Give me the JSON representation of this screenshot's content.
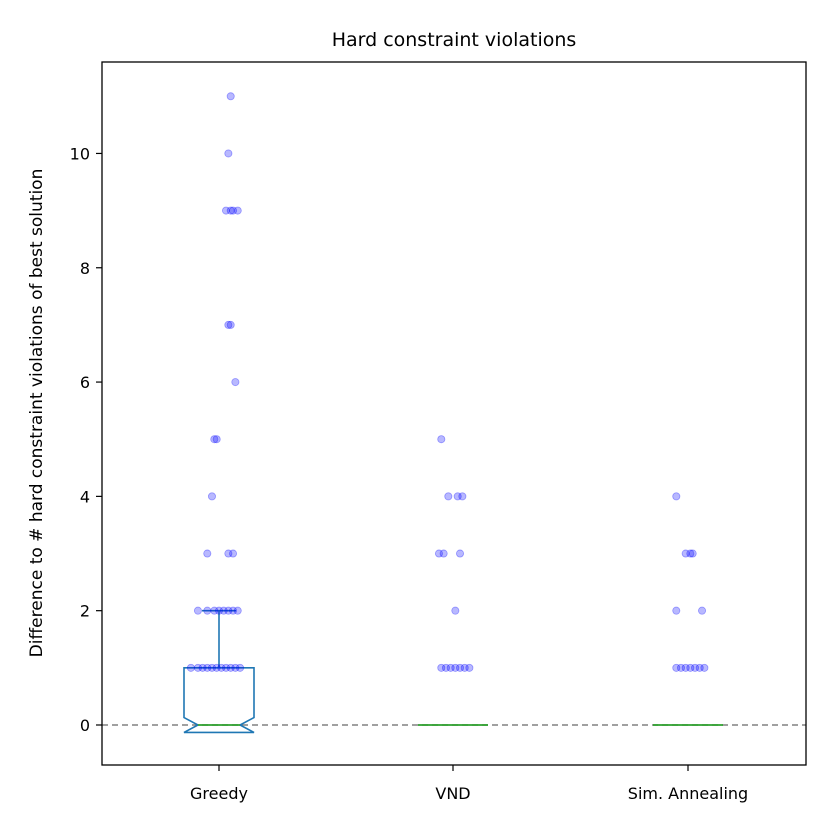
{
  "chart_data": {
    "type": "box+strip",
    "title": "Hard constraint violations",
    "xlabel": "",
    "ylabel": "Difference to # hard constraint violations of best solution",
    "ylim": [
      -0.7,
      11.6
    ],
    "yticks": [
      0,
      2,
      4,
      6,
      8,
      10
    ],
    "categories": [
      "Greedy",
      "VND",
      "Sim. Annealing"
    ],
    "reference_line": {
      "y": 0,
      "style": "dashed",
      "color": "#808080"
    },
    "boxes": [
      {
        "category": "Greedy",
        "q1": 0,
        "median": 0,
        "q3": 1,
        "whisker_low": 0,
        "whisker_high": 2,
        "notch_low": -0.13,
        "notch_high": 0.13
      },
      {
        "category": "VND",
        "q1": 0,
        "median": 0,
        "q3": 0,
        "whisker_low": 0,
        "whisker_high": 0
      },
      {
        "category": "Sim. Annealing",
        "q1": 0,
        "median": 0,
        "q3": 0,
        "whisker_low": 0,
        "whisker_high": 0
      }
    ],
    "points": [
      {
        "category": "Greedy",
        "y": 11,
        "jitter": 0.05
      },
      {
        "category": "Greedy",
        "y": 10,
        "jitter": 0.04
      },
      {
        "category": "Greedy",
        "y": 9,
        "jitter": 0.03
      },
      {
        "category": "Greedy",
        "y": 9,
        "jitter": 0.05
      },
      {
        "category": "Greedy",
        "y": 9,
        "jitter": 0.06
      },
      {
        "category": "Greedy",
        "y": 9,
        "jitter": 0.08
      },
      {
        "category": "Greedy",
        "y": 7,
        "jitter": 0.04
      },
      {
        "category": "Greedy",
        "y": 7,
        "jitter": 0.05
      },
      {
        "category": "Greedy",
        "y": 6,
        "jitter": 0.07
      },
      {
        "category": "Greedy",
        "y": 5,
        "jitter": -0.02
      },
      {
        "category": "Greedy",
        "y": 5,
        "jitter": -0.01
      },
      {
        "category": "Greedy",
        "y": 4,
        "jitter": -0.03
      },
      {
        "category": "Greedy",
        "y": 3,
        "jitter": -0.05
      },
      {
        "category": "Greedy",
        "y": 3,
        "jitter": 0.04
      },
      {
        "category": "Greedy",
        "y": 3,
        "jitter": 0.06
      },
      {
        "category": "Greedy",
        "y": 2,
        "jitter": -0.09
      },
      {
        "category": "Greedy",
        "y": 2,
        "jitter": -0.05
      },
      {
        "category": "Greedy",
        "y": 2,
        "jitter": -0.02
      },
      {
        "category": "Greedy",
        "y": 2,
        "jitter": 0.0
      },
      {
        "category": "Greedy",
        "y": 2,
        "jitter": 0.02
      },
      {
        "category": "Greedy",
        "y": 2,
        "jitter": 0.04
      },
      {
        "category": "Greedy",
        "y": 2,
        "jitter": 0.06
      },
      {
        "category": "Greedy",
        "y": 2,
        "jitter": 0.08
      },
      {
        "category": "Greedy",
        "y": 1,
        "jitter": -0.12
      },
      {
        "category": "Greedy",
        "y": 1,
        "jitter": -0.09
      },
      {
        "category": "Greedy",
        "y": 1,
        "jitter": -0.07
      },
      {
        "category": "Greedy",
        "y": 1,
        "jitter": -0.05
      },
      {
        "category": "Greedy",
        "y": 1,
        "jitter": -0.03
      },
      {
        "category": "Greedy",
        "y": 1,
        "jitter": -0.01
      },
      {
        "category": "Greedy",
        "y": 1,
        "jitter": 0.01
      },
      {
        "category": "Greedy",
        "y": 1,
        "jitter": 0.03
      },
      {
        "category": "Greedy",
        "y": 1,
        "jitter": 0.05
      },
      {
        "category": "Greedy",
        "y": 1,
        "jitter": 0.07
      },
      {
        "category": "Greedy",
        "y": 1,
        "jitter": 0.09
      },
      {
        "category": "VND",
        "y": 5,
        "jitter": -0.05
      },
      {
        "category": "VND",
        "y": 4,
        "jitter": -0.02
      },
      {
        "category": "VND",
        "y": 4,
        "jitter": 0.02
      },
      {
        "category": "VND",
        "y": 4,
        "jitter": 0.04
      },
      {
        "category": "VND",
        "y": 3,
        "jitter": -0.06
      },
      {
        "category": "VND",
        "y": 3,
        "jitter": -0.04
      },
      {
        "category": "VND",
        "y": 3,
        "jitter": 0.03
      },
      {
        "category": "VND",
        "y": 2,
        "jitter": 0.01
      },
      {
        "category": "VND",
        "y": 1,
        "jitter": -0.05
      },
      {
        "category": "VND",
        "y": 1,
        "jitter": -0.03
      },
      {
        "category": "VND",
        "y": 1,
        "jitter": -0.01
      },
      {
        "category": "VND",
        "y": 1,
        "jitter": 0.01
      },
      {
        "category": "VND",
        "y": 1,
        "jitter": 0.03
      },
      {
        "category": "VND",
        "y": 1,
        "jitter": 0.05
      },
      {
        "category": "VND",
        "y": 1,
        "jitter": 0.07
      },
      {
        "category": "Sim. Annealing",
        "y": 4,
        "jitter": -0.05
      },
      {
        "category": "Sim. Annealing",
        "y": 3,
        "jitter": -0.01
      },
      {
        "category": "Sim. Annealing",
        "y": 3,
        "jitter": 0.01
      },
      {
        "category": "Sim. Annealing",
        "y": 3,
        "jitter": 0.02
      },
      {
        "category": "Sim. Annealing",
        "y": 2,
        "jitter": -0.05
      },
      {
        "category": "Sim. Annealing",
        "y": 2,
        "jitter": 0.06
      },
      {
        "category": "Sim. Annealing",
        "y": 1,
        "jitter": -0.05
      },
      {
        "category": "Sim. Annealing",
        "y": 1,
        "jitter": -0.03
      },
      {
        "category": "Sim. Annealing",
        "y": 1,
        "jitter": -0.01
      },
      {
        "category": "Sim. Annealing",
        "y": 1,
        "jitter": 0.01
      },
      {
        "category": "Sim. Annealing",
        "y": 1,
        "jitter": 0.03
      },
      {
        "category": "Sim. Annealing",
        "y": 1,
        "jitter": 0.05
      },
      {
        "category": "Sim. Annealing",
        "y": 1,
        "jitter": 0.07
      }
    ],
    "colors": {
      "box": "#1f77b4",
      "median": "#2ca02c",
      "points": "#0000ff",
      "reference": "#808080"
    }
  }
}
